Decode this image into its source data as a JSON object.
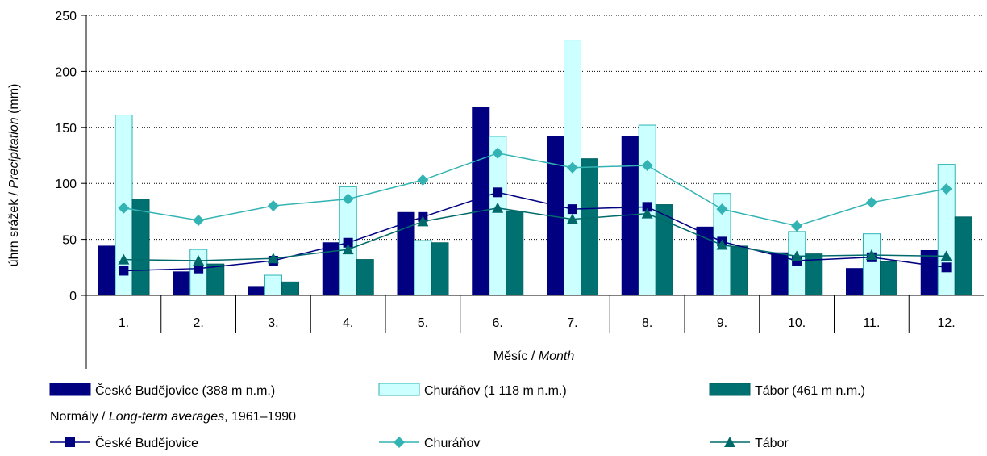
{
  "chart_data": {
    "type": "bar",
    "categories": [
      "1.",
      "2.",
      "3.",
      "4.",
      "5.",
      "6.",
      "7.",
      "8.",
      "9.",
      "10.",
      "11.",
      "12."
    ],
    "ylim": [
      0,
      250
    ],
    "yticks": [
      0,
      50,
      100,
      150,
      200,
      250
    ],
    "ylabel": {
      "plain": "úhrn srážek / ",
      "italic": "Precipitation",
      "unit": " (mm)"
    },
    "xlabel": {
      "plain": "Měsíc / ",
      "italic": "Month"
    },
    "bar_series": [
      {
        "name": "České Budějovice (388 m n.m.)",
        "fill": "#000080",
        "stroke": "#000080",
        "values": [
          44,
          21,
          8,
          47,
          74,
          168,
          142,
          142,
          61,
          38,
          24,
          40
        ]
      },
      {
        "name": "Churáňov (1 118 m n.m.)",
        "fill": "#ccffff",
        "stroke": "#2fb3b3",
        "values": [
          161,
          41,
          18,
          97,
          49,
          142,
          228,
          152,
          91,
          57,
          55,
          117
        ]
      },
      {
        "name": "Tábor (461 m n.m.)",
        "fill": "#007070",
        "stroke": "#006060",
        "values": [
          86,
          28,
          12,
          32,
          47,
          75,
          122,
          81,
          44,
          37,
          30,
          70
        ]
      }
    ],
    "normals_heading": {
      "plain": "Normály / ",
      "italic": "Long-term averages",
      "suffix": ", 1961–1990"
    },
    "line_series": [
      {
        "name": "České Budějovice",
        "color": "#000080",
        "marker": "square",
        "values": [
          22,
          24,
          31,
          47,
          70,
          92,
          77,
          79,
          48,
          31,
          34,
          25
        ]
      },
      {
        "name": "Churáňov",
        "color": "#33b3b3",
        "marker": "diamond",
        "values": [
          78,
          67,
          80,
          86,
          103,
          127,
          114,
          116,
          77,
          62,
          83,
          95
        ]
      },
      {
        "name": "Tábor",
        "color": "#006a6a",
        "marker": "triangle",
        "values": [
          32,
          31,
          33,
          41,
          66,
          78,
          68,
          73,
          45,
          35,
          36,
          35
        ]
      }
    ],
    "legend_placement": "bottom",
    "grid": "horizontal dotted"
  }
}
